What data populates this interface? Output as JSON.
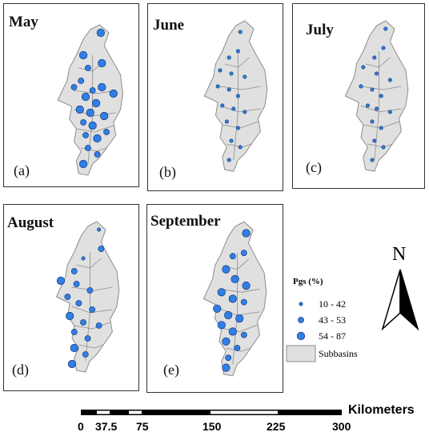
{
  "panels": [
    {
      "month": "May",
      "tag": "(a)",
      "dots": [
        [
          0.73,
          0.08,
          3
        ],
        [
          0.58,
          0.22,
          3
        ],
        [
          0.74,
          0.27,
          3
        ],
        [
          0.62,
          0.3,
          2
        ],
        [
          0.56,
          0.38,
          2
        ],
        [
          0.5,
          0.42,
          2
        ],
        [
          0.66,
          0.44,
          2
        ],
        [
          0.74,
          0.42,
          3
        ],
        [
          0.84,
          0.46,
          3
        ],
        [
          0.6,
          0.48,
          3
        ],
        [
          0.69,
          0.52,
          3
        ],
        [
          0.55,
          0.56,
          3
        ],
        [
          0.64,
          0.58,
          3
        ],
        [
          0.76,
          0.6,
          3
        ],
        [
          0.58,
          0.64,
          2
        ],
        [
          0.66,
          0.66,
          3
        ],
        [
          0.78,
          0.7,
          2
        ],
        [
          0.6,
          0.72,
          2
        ],
        [
          0.7,
          0.74,
          3
        ],
        [
          0.62,
          0.8,
          2
        ],
        [
          0.7,
          0.84,
          2
        ],
        [
          0.58,
          0.9,
          3
        ]
      ]
    },
    {
      "month": "June",
      "tag": "(b)",
      "dots": [
        [
          0.68,
          0.1,
          1
        ],
        [
          0.66,
          0.22,
          1
        ],
        [
          0.58,
          0.26,
          1
        ],
        [
          0.5,
          0.34,
          1
        ],
        [
          0.6,
          0.36,
          1
        ],
        [
          0.72,
          0.38,
          1
        ],
        [
          0.48,
          0.44,
          1
        ],
        [
          0.58,
          0.46,
          1
        ],
        [
          0.66,
          0.5,
          1
        ],
        [
          0.52,
          0.56,
          1
        ],
        [
          0.62,
          0.58,
          1
        ],
        [
          0.72,
          0.6,
          1
        ],
        [
          0.56,
          0.66,
          1
        ],
        [
          0.66,
          0.7,
          1
        ],
        [
          0.6,
          0.78,
          1
        ],
        [
          0.68,
          0.82,
          1
        ],
        [
          0.58,
          0.9,
          1
        ]
      ]
    },
    {
      "month": "July",
      "tag": "(c)",
      "dots": [
        [
          0.72,
          0.08,
          1
        ],
        [
          0.7,
          0.2,
          1
        ],
        [
          0.62,
          0.26,
          1
        ],
        [
          0.52,
          0.32,
          1
        ],
        [
          0.64,
          0.36,
          1
        ],
        [
          0.76,
          0.4,
          1
        ],
        [
          0.5,
          0.44,
          1
        ],
        [
          0.6,
          0.46,
          1
        ],
        [
          0.68,
          0.5,
          1
        ],
        [
          0.56,
          0.56,
          1
        ],
        [
          0.64,
          0.58,
          1
        ],
        [
          0.76,
          0.6,
          1
        ],
        [
          0.6,
          0.66,
          1
        ],
        [
          0.68,
          0.7,
          1
        ],
        [
          0.62,
          0.78,
          1
        ],
        [
          0.7,
          0.82,
          1
        ],
        [
          0.6,
          0.9,
          1
        ]
      ]
    },
    {
      "month": "August",
      "tag": "(d)",
      "dots": [
        [
          0.74,
          0.08,
          1
        ],
        [
          0.76,
          0.2,
          2
        ],
        [
          0.6,
          0.26,
          1
        ],
        [
          0.52,
          0.34,
          2
        ],
        [
          0.4,
          0.4,
          3
        ],
        [
          0.54,
          0.42,
          2
        ],
        [
          0.66,
          0.46,
          2
        ],
        [
          0.46,
          0.5,
          2
        ],
        [
          0.56,
          0.54,
          2
        ],
        [
          0.68,
          0.58,
          2
        ],
        [
          0.48,
          0.62,
          3
        ],
        [
          0.6,
          0.66,
          2
        ],
        [
          0.74,
          0.68,
          2
        ],
        [
          0.52,
          0.72,
          2
        ],
        [
          0.64,
          0.76,
          2
        ],
        [
          0.52,
          0.82,
          3
        ],
        [
          0.62,
          0.86,
          2
        ],
        [
          0.5,
          0.92,
          3
        ]
      ]
    },
    {
      "month": "September",
      "tag": "(e)",
      "dots": [
        [
          0.74,
          0.1,
          3
        ],
        [
          0.72,
          0.22,
          2
        ],
        [
          0.62,
          0.24,
          2
        ],
        [
          0.56,
          0.32,
          3
        ],
        [
          0.64,
          0.38,
          3
        ],
        [
          0.74,
          0.42,
          3
        ],
        [
          0.52,
          0.46,
          3
        ],
        [
          0.62,
          0.5,
          3
        ],
        [
          0.72,
          0.52,
          2
        ],
        [
          0.48,
          0.56,
          3
        ],
        [
          0.58,
          0.6,
          3
        ],
        [
          0.68,
          0.62,
          3
        ],
        [
          0.52,
          0.66,
          3
        ],
        [
          0.62,
          0.7,
          3
        ],
        [
          0.72,
          0.72,
          2
        ],
        [
          0.56,
          0.76,
          3
        ],
        [
          0.66,
          0.8,
          2
        ],
        [
          0.58,
          0.86,
          2
        ],
        [
          0.56,
          0.92,
          3
        ]
      ]
    }
  ],
  "legend": {
    "title": "Pgs (%)",
    "classes": [
      {
        "label": "10 - 42",
        "size": 1
      },
      {
        "label": "43 - 53",
        "size": 2
      },
      {
        "label": "54 - 87",
        "size": 3
      }
    ],
    "subbasins_label": "Subbasins"
  },
  "north_label": "N",
  "scale": {
    "ticks": [
      "0",
      "37.5",
      "75",
      "150",
      "225",
      "300"
    ],
    "units": "Kilometers"
  },
  "colors": {
    "dot_fill": "#2f7fe6",
    "dot_stroke": "#0d2a66",
    "basin_fill": "#e0e0e0",
    "basin_stroke": "#8c8c8c"
  }
}
